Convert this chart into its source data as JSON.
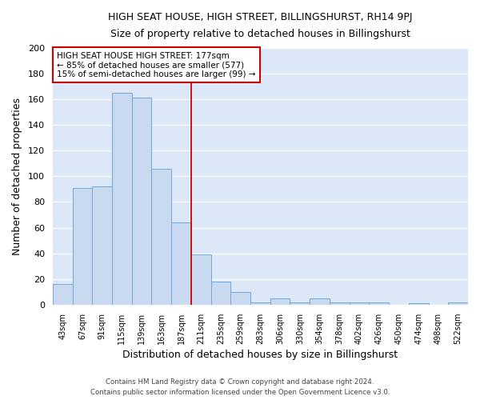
{
  "title": "HIGH SEAT HOUSE, HIGH STREET, BILLINGSHURST, RH14 9PJ",
  "subtitle": "Size of property relative to detached houses in Billingshurst",
  "xlabel": "Distribution of detached houses by size in Billingshurst",
  "ylabel": "Number of detached properties",
  "categories": [
    "43sqm",
    "67sqm",
    "91sqm",
    "115sqm",
    "139sqm",
    "163sqm",
    "187sqm",
    "211sqm",
    "235sqm",
    "259sqm",
    "283sqm",
    "306sqm",
    "330sqm",
    "354sqm",
    "378sqm",
    "402sqm",
    "426sqm",
    "450sqm",
    "474sqm",
    "498sqm",
    "522sqm"
  ],
  "values": [
    16,
    91,
    92,
    165,
    161,
    106,
    64,
    39,
    18,
    10,
    2,
    5,
    2,
    5,
    2,
    2,
    2,
    0,
    1,
    0,
    2
  ],
  "bar_color": "#c9d9f0",
  "bar_edge_color": "#6fa8dc",
  "background_color": "#dce8f8",
  "grid_color": "#ffffff",
  "vline_x": 6.5,
  "vline_color": "#cc0000",
  "annotation_text": "HIGH SEAT HOUSE HIGH STREET: 177sqm\n← 85% of detached houses are smaller (577)\n15% of semi-detached houses are larger (99) →",
  "annotation_box_color": "#ffffff",
  "annotation_box_edge_color": "#cc0000",
  "ylim": [
    0,
    200
  ],
  "yticks": [
    0,
    20,
    40,
    60,
    80,
    100,
    120,
    140,
    160,
    180,
    200
  ],
  "fig_bg_color": "#ffffff",
  "footer_line1": "Contains HM Land Registry data © Crown copyright and database right 2024.",
  "footer_line2": "Contains public sector information licensed under the Open Government Licence v3.0."
}
